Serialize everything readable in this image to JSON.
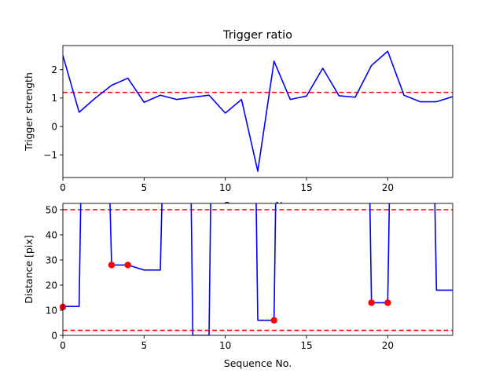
{
  "chart_data": [
    {
      "type": "line",
      "title": "Trigger ratio",
      "xlabel": "Sequence No.",
      "ylabel": "Trigger strength",
      "xlim": [
        0,
        24
      ],
      "ylim": [
        -1.8,
        2.85
      ],
      "xticks": [
        0,
        5,
        10,
        15,
        20
      ],
      "yticks": [
        -1,
        0,
        1,
        2
      ],
      "tick_labels_x": [
        "0",
        "5",
        "10",
        "15",
        "20"
      ],
      "tick_labels_y": [
        "−1",
        "0",
        "1",
        "2"
      ],
      "grid": false,
      "series": [
        {
          "color": "#0000ff",
          "x": [
            0,
            1,
            2,
            3,
            4,
            5,
            6,
            7,
            8,
            9,
            10,
            11,
            12,
            13,
            14,
            15,
            16,
            17,
            18,
            19,
            20,
            21,
            22,
            23,
            24
          ],
          "y": [
            2.5,
            0.5,
            1.0,
            1.45,
            1.7,
            0.85,
            1.1,
            0.95,
            1.03,
            1.1,
            0.47,
            0.95,
            -1.58,
            2.3,
            0.95,
            1.07,
            2.05,
            1.08,
            1.03,
            2.15,
            2.65,
            1.1,
            0.87,
            0.87,
            1.05
          ]
        }
      ],
      "reference_lines": [
        {
          "axis": "y",
          "value": 1.2,
          "color": "#ff0000",
          "style": "dashed"
        }
      ]
    },
    {
      "type": "line",
      "title": "",
      "xlabel": "Sequence No.",
      "ylabel": "Distance [pix]",
      "xlim": [
        0,
        24
      ],
      "ylim": [
        0,
        52.5
      ],
      "xticks": [
        0,
        5,
        10,
        15,
        20
      ],
      "yticks": [
        0,
        10,
        20,
        30,
        40,
        50
      ],
      "tick_labels_x": [
        "0",
        "5",
        "10",
        "15",
        "20"
      ],
      "tick_labels_y": [
        "0",
        "10",
        "20",
        "30",
        "40",
        "50"
      ],
      "grid": false,
      "series": [
        {
          "color": "#0000ff",
          "x": [
            0,
            0.02,
            1,
            1.1,
            2.9,
            3,
            4,
            5,
            6,
            6.1,
            7.9,
            8,
            9,
            9.1,
            11.9,
            12,
            13,
            13.1,
            18.9,
            19,
            20,
            20.1,
            22.9,
            23,
            24
          ],
          "y": [
            11,
            11.5,
            11.5,
            53,
            53,
            28,
            28,
            26,
            26,
            53,
            53,
            0,
            0,
            53,
            53,
            6,
            6,
            53,
            53,
            13,
            13,
            53,
            53,
            18,
            18
          ]
        }
      ],
      "markers": {
        "color": "#ff0000",
        "x": [
          0,
          3,
          4,
          13,
          19,
          20
        ],
        "y": [
          11.3,
          28,
          28,
          6,
          13,
          13
        ]
      },
      "reference_lines": [
        {
          "axis": "y",
          "value": 50,
          "color": "#ff0000",
          "style": "dashed"
        },
        {
          "axis": "y",
          "value": 2,
          "color": "#ff0000",
          "style": "dashed"
        }
      ]
    }
  ]
}
